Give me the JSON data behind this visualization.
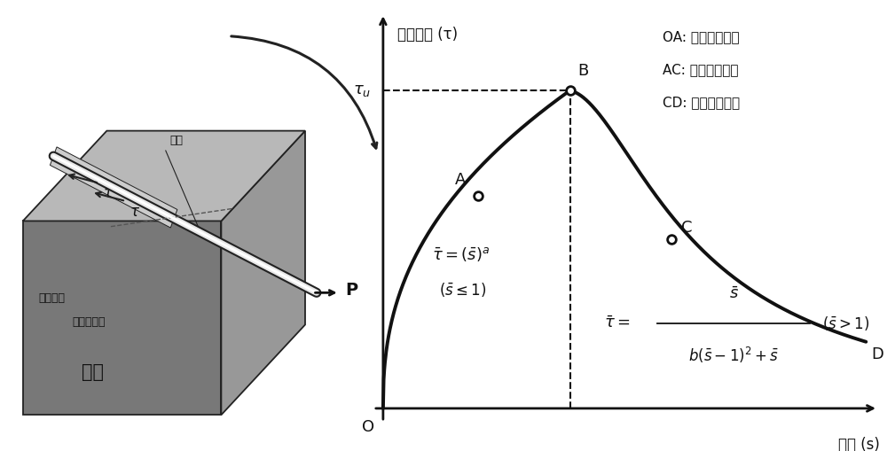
{
  "ylabel": "粘结应力 (τ)",
  "xlabel": "滑移 (s)",
  "legend_lines": [
    "OA: 完全粘结阶段",
    "AC: 部分脱粘阶段",
    "CD: 完全脱粘阶段"
  ],
  "point_A_label": "A",
  "point_B_label": "B",
  "point_C_label": "C",
  "point_D_label": "D",
  "point_O_label": "O",
  "point_P_label": "P",
  "box_label1": "粘结区域",
  "box_label2": "未粘结区域",
  "box_label3": "钢筋",
  "box_label4": "基体",
  "tau_label": "τ",
  "background_color": "#ffffff",
  "curve_color": "#111111",
  "axis_color": "#111111",
  "dashed_color": "#111111",
  "point_color": "#ffffff",
  "point_edge_color": "#111111",
  "text_color": "#111111",
  "top_color": "#b8b8b8",
  "front_color": "#787878",
  "right_color": "#989898",
  "edge_color": "#222222",
  "rebar_dark": "#222222",
  "rebar_light": "#e8e8e8",
  "rebar_highlight": "#ffffff"
}
